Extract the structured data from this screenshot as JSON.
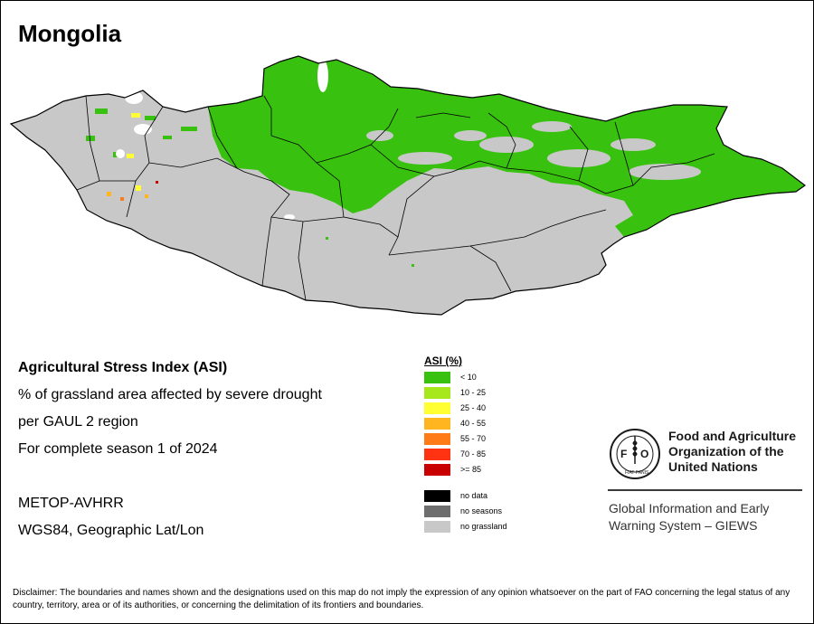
{
  "title": "Mongolia",
  "description": {
    "line1": "Agricultural Stress Index (ASI)",
    "line2": "% of grassland area affected by severe drought",
    "line3": "per GAUL 2 region",
    "line4": "For complete season 1 of 2024",
    "sensor": "METOP-AVHRR",
    "projection": "WGS84, Geographic Lat/Lon"
  },
  "legend": {
    "title": "ASI (%)",
    "classes": [
      {
        "label": "< 10",
        "color": "#38c20f"
      },
      {
        "label": "10 - 25",
        "color": "#a6e81c"
      },
      {
        "label": "25 - 40",
        "color": "#ffff33"
      },
      {
        "label": "40 - 55",
        "color": "#ffb51f"
      },
      {
        "label": "55 - 70",
        "color": "#ff7b17"
      },
      {
        "label": "70 - 85",
        "color": "#ff3311"
      },
      {
        "label": ">= 85",
        "color": "#c80000"
      }
    ],
    "other": [
      {
        "label": "no data",
        "color": "#000000"
      },
      {
        "label": "no seasons",
        "color": "#6e6e6e"
      },
      {
        "label": "no grassland",
        "color": "#c8c8c8"
      }
    ]
  },
  "map": {
    "country_fill": "#c8c8c8",
    "dominant_class_color": "#38c20f"
  },
  "fao": {
    "logo_text": "FAO",
    "logo_motto": "FIAT PANIS",
    "org_line1": "Food and Agriculture",
    "org_line2": "Organization of the",
    "org_line3": "United Nations",
    "giews_line1": "Global Information and Early",
    "giews_line2": "Warning System – GIEWS"
  },
  "disclaimer": "Disclaimer: The boundaries and names shown and the designations used on this map do not imply the expression of any opinion whatsoever on the part of FAO concerning the legal status of any country, territory, area or of its authorities, or concerning the delimitation of its frontiers and boundaries."
}
